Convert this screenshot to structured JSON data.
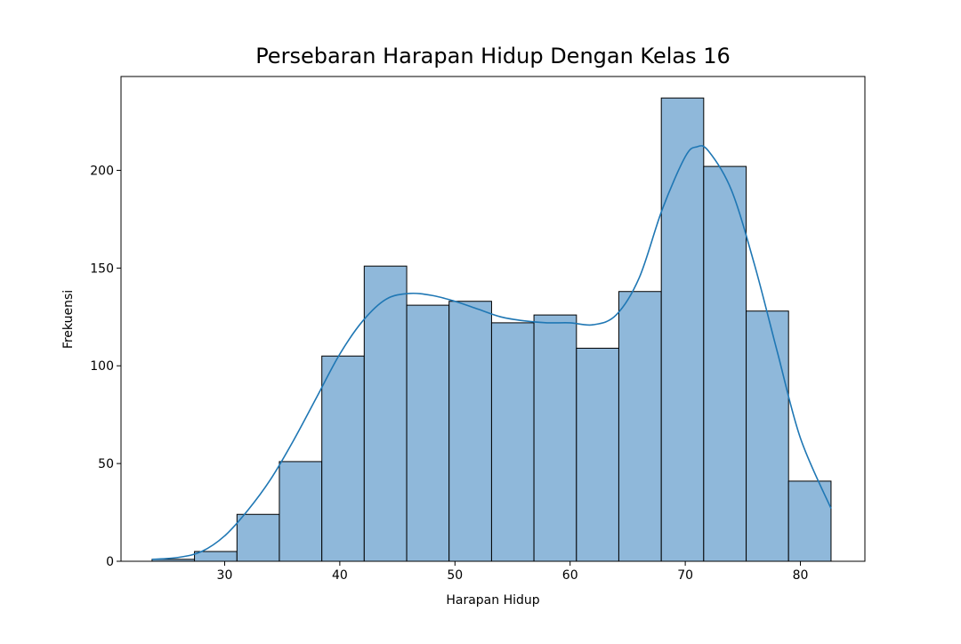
{
  "chart_data": {
    "type": "histogram",
    "title": "Persebaran Harapan Hidup Dengan Kelas 16",
    "xlabel": "Harapan Hidup",
    "ylabel": "Frekuensi",
    "xlim": [
      21.0,
      85.6
    ],
    "ylim": [
      0,
      248
    ],
    "x_ticks": [
      30,
      40,
      50,
      60,
      70,
      80
    ],
    "y_ticks": [
      0,
      50,
      100,
      150,
      200
    ],
    "bin_edges": [
      23.7,
      27.38,
      31.07,
      34.75,
      38.44,
      42.12,
      45.81,
      49.49,
      53.18,
      56.86,
      60.55,
      64.23,
      67.92,
      71.6,
      75.29,
      78.97,
      82.66
    ],
    "counts": [
      1,
      5,
      24,
      51,
      105,
      151,
      131,
      133,
      122,
      126,
      109,
      138,
      237,
      202,
      128,
      41
    ],
    "bar_color": "#8fb8da",
    "bar_edge_color": "#000000",
    "kde": {
      "color": "#1f77b4",
      "x": [
        23.7,
        26,
        28,
        30,
        32,
        34,
        36,
        38,
        40,
        42,
        44,
        46,
        48,
        50,
        52,
        54,
        56,
        58,
        60,
        62,
        64,
        66,
        68,
        70,
        71,
        72,
        74,
        76,
        78,
        80,
        82.66
      ],
      "y": [
        1,
        2,
        5,
        13,
        26,
        42,
        62,
        84,
        106,
        123,
        134,
        137,
        136,
        133,
        129,
        125,
        123,
        122,
        122,
        121,
        126,
        145,
        180,
        207,
        212,
        210,
        190,
        152,
        107,
        63,
        27
      ]
    },
    "grid": false,
    "legend": false
  }
}
